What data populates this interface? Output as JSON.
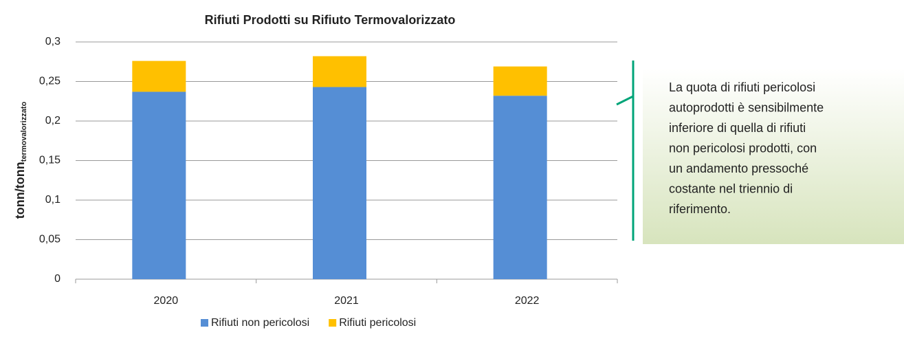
{
  "chart_data": {
    "type": "stacked_bar",
    "title": "Rifiuti Prodotti su Rifiuto Termovalorizzato",
    "y_label": "tonn/tonn",
    "y_label_sub": "termovalorizzato",
    "categories": [
      "2020",
      "2021",
      "2022"
    ],
    "series": [
      {
        "name": "Rifiuti non pericolosi",
        "color": "#558ed5",
        "values": [
          0.237,
          0.243,
          0.232
        ]
      },
      {
        "name": "Rifiuti pericolosi",
        "color": "#ffc000",
        "values": [
          0.039,
          0.039,
          0.037
        ]
      }
    ],
    "ylim": [
      0,
      0.3
    ],
    "yticks": [
      0,
      {
        "value": 0.05,
        "label": "0,05"
      },
      {
        "value": 0.1,
        "label": "0,1"
      },
      {
        "value": 0.15,
        "label": "0,15"
      },
      {
        "value": 0.2,
        "label": "0,2"
      },
      {
        "value": 0.25,
        "label": "0,25"
      },
      {
        "value": 0.3,
        "label": "0,3"
      }
    ],
    "grid": true,
    "note": [
      "La quota di rifiuti pericolosi",
      "autoprodotti è sensibilmente",
      "inferiore di quella di rifiuti",
      "non pericolosi prodotti, con",
      "un andamento pressoché",
      "costante nel triennio di",
      "riferimento."
    ]
  }
}
